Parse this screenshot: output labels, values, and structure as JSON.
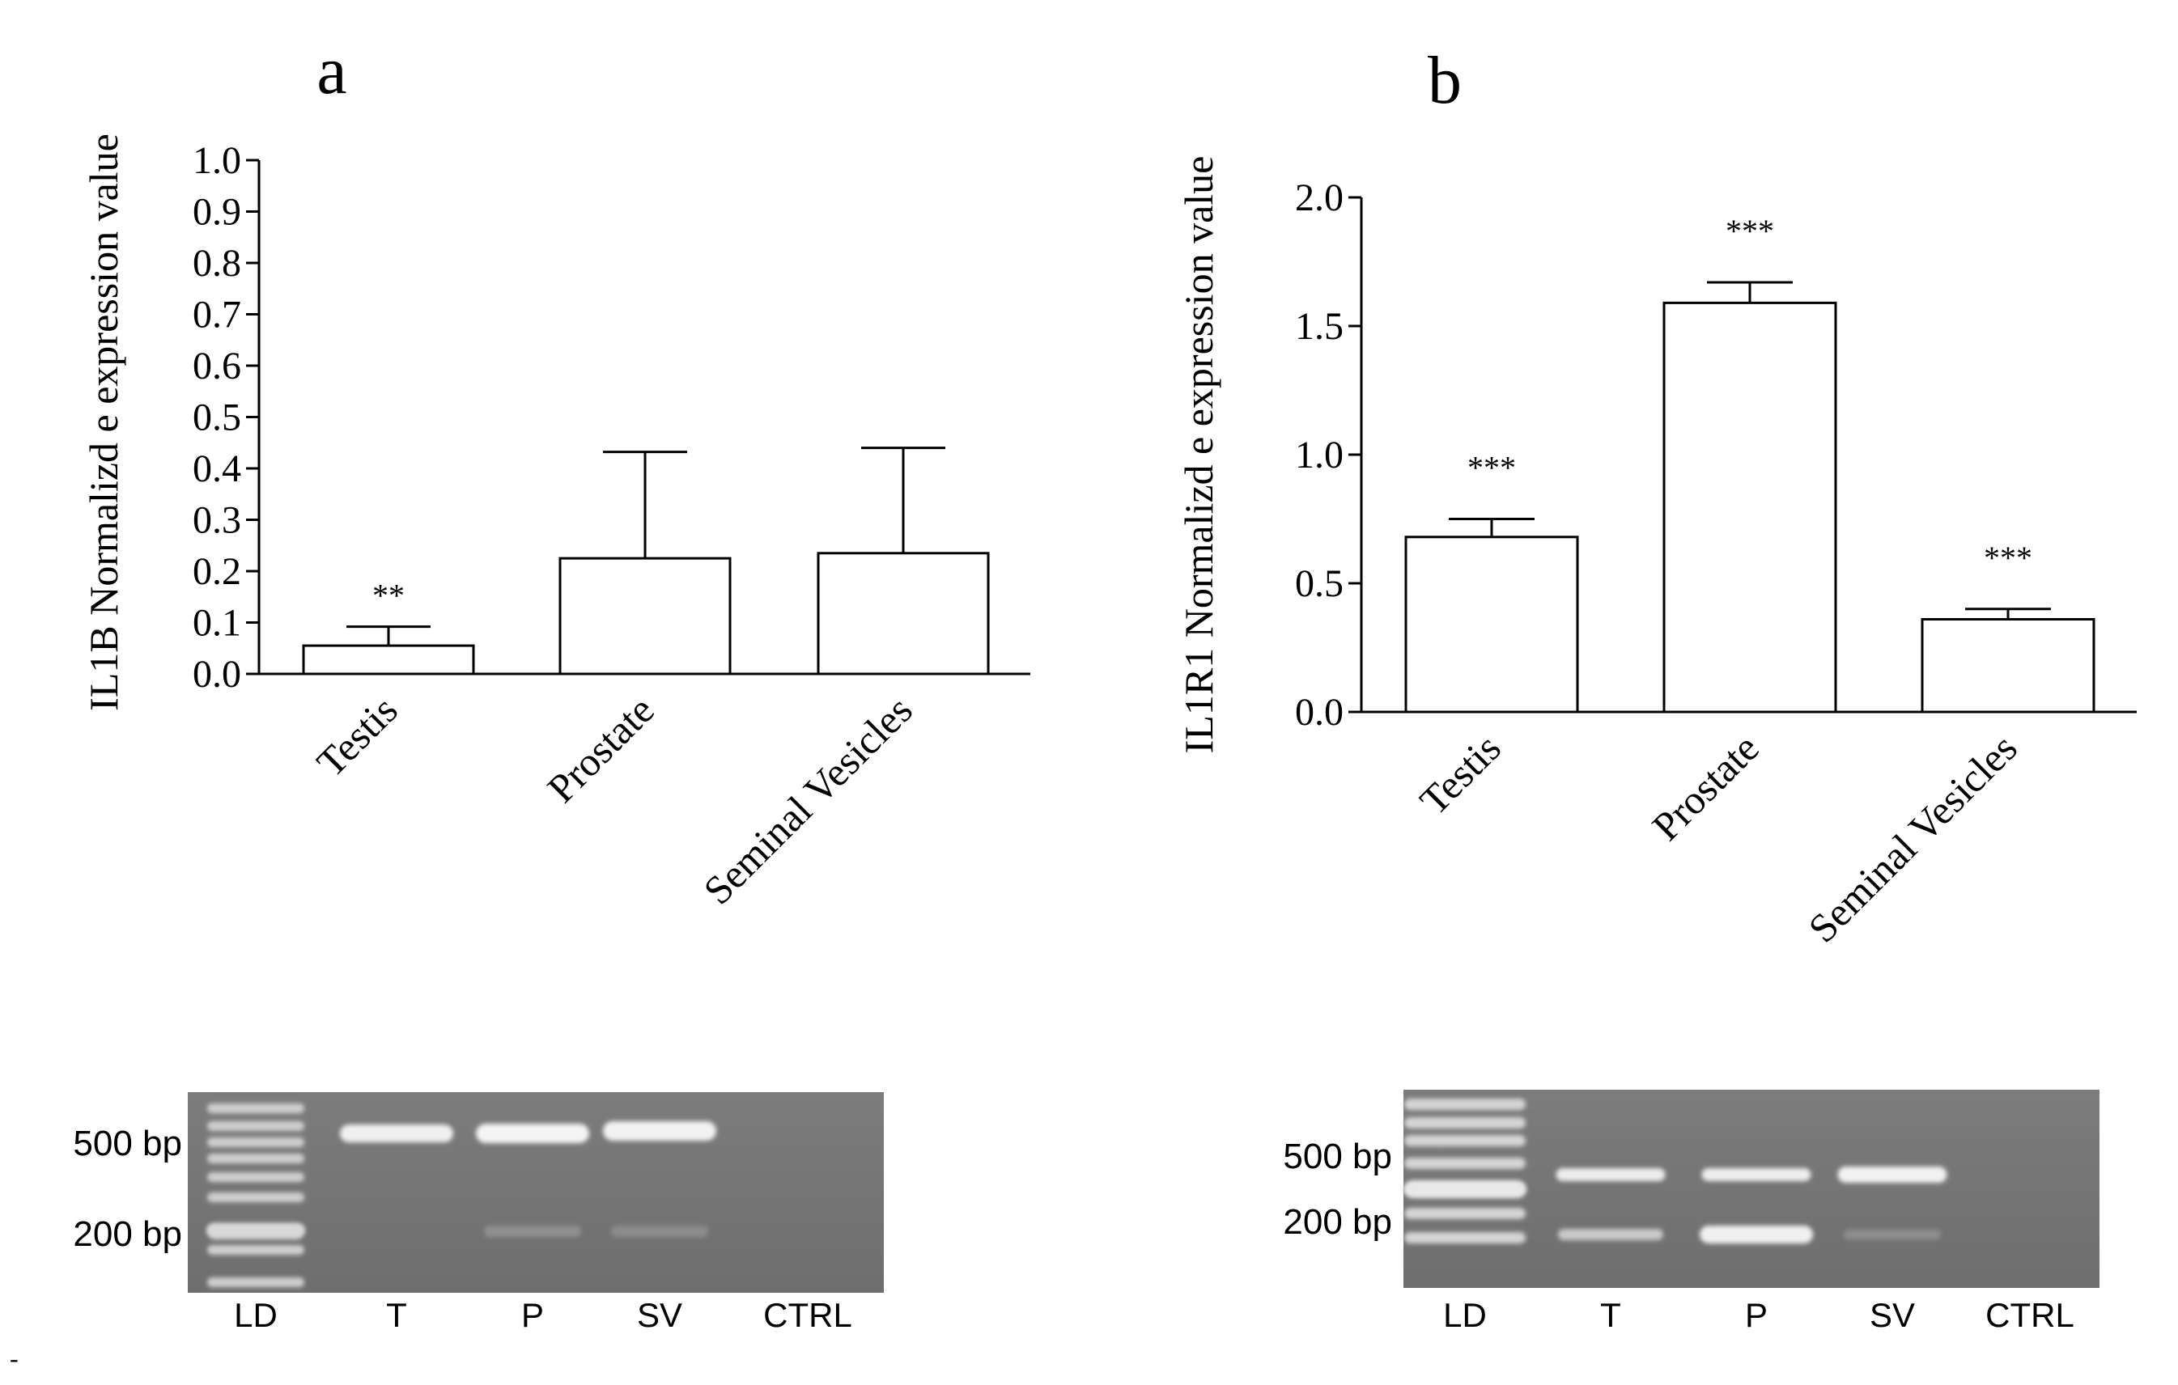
{
  "chart_data": [
    {
      "type": "bar",
      "panel_letter": "a",
      "ylabel": "IL1B Normalizd e expression value",
      "categories": [
        "Testis",
        "Prostate",
        "Seminal Vesicles"
      ],
      "values": [
        0.055,
        0.225,
        0.235
      ],
      "error_upper": [
        0.092,
        0.432,
        0.44
      ],
      "significance": [
        "**",
        "",
        ""
      ],
      "ylim": [
        0,
        1.0
      ],
      "yticks": [
        0.0,
        0.1,
        0.2,
        0.3,
        0.4,
        0.5,
        0.6,
        0.7,
        0.8,
        0.9,
        1.0
      ],
      "ytick_labels": [
        "0.0",
        "0.1",
        "0.2",
        "0.3",
        "0.4",
        "0.5",
        "0.6",
        "0.7",
        "0.8",
        "0.9",
        "1.0"
      ],
      "grid": false
    },
    {
      "type": "bar",
      "panel_letter": "b",
      "ylabel": "IL1R1 Normalizd e expression value",
      "categories": [
        "Testis",
        "Prostate",
        "Seminal Vesicles"
      ],
      "values": [
        0.68,
        1.59,
        0.36
      ],
      "error_upper": [
        0.75,
        1.67,
        0.4
      ],
      "significance": [
        "***",
        "***",
        "***"
      ],
      "ylim": [
        0,
        2.0
      ],
      "yticks": [
        0.0,
        0.5,
        1.0,
        1.5,
        2.0
      ],
      "ytick_labels": [
        "0.0",
        "0.5",
        "1.0",
        "1.5",
        "2.0"
      ],
      "grid": false
    }
  ],
  "gels": [
    {
      "size_markers": [
        "500 bp",
        "200 bp"
      ],
      "lane_labels": [
        "LD",
        "T",
        "P",
        "SV",
        "CTRL"
      ]
    },
    {
      "size_markers": [
        "500 bp",
        "200 bp"
      ],
      "lane_labels": [
        "LD",
        "T",
        "P",
        "SV",
        "CTRL"
      ]
    }
  ],
  "footer_mark": "-"
}
